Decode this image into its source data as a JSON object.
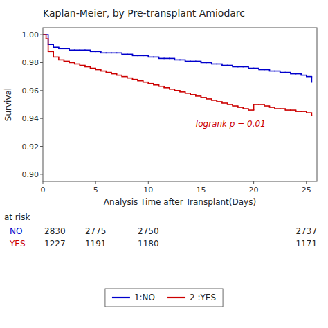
{
  "chart_data": {
    "type": "step",
    "title": "Kaplan-Meier, by Pre-transplant Amiodarc",
    "x_label": "Analysis Time after Transplant(Days)",
    "y_label": "Survival",
    "xlim": [
      0,
      26
    ],
    "ylim": [
      0.895,
      1.005
    ],
    "xticks": [
      0,
      5,
      10,
      15,
      20,
      25
    ],
    "yticks": [
      {
        "value": 0.9,
        "label": "0.90"
      },
      0.92,
      0.94,
      0.96,
      0.98,
      {
        "value": 1.0,
        "label": "1.00"
      }
    ],
    "grid": false,
    "x": [
      0,
      0.3,
      0.5,
      1.0,
      1.5,
      2.0,
      2.5,
      3.0,
      3.5,
      4.0,
      4.5,
      5.0,
      5.5,
      6.0,
      6.5,
      7.0,
      7.5,
      8.0,
      8.5,
      9.0,
      9.5,
      10.0,
      10.5,
      11.0,
      11.5,
      12.0,
      12.5,
      13.0,
      13.5,
      14.0,
      14.5,
      15.0,
      15.5,
      16.0,
      16.5,
      17.0,
      17.5,
      18.0,
      18.5,
      19.0,
      19.5,
      20.0,
      20.5,
      21.0,
      21.5,
      22.0,
      22.5,
      23.0,
      23.5,
      24.0,
      24.5,
      25.0,
      25.5
    ],
    "series": [
      {
        "name": "1:NO",
        "color": "#0000cc",
        "values": [
          1.0,
          1.0,
          0.993,
          0.991,
          0.99,
          0.99,
          0.989,
          0.989,
          0.989,
          0.989,
          0.988,
          0.988,
          0.987,
          0.987,
          0.987,
          0.987,
          0.986,
          0.986,
          0.985,
          0.985,
          0.985,
          0.984,
          0.984,
          0.983,
          0.983,
          0.983,
          0.982,
          0.982,
          0.981,
          0.981,
          0.981,
          0.98,
          0.98,
          0.979,
          0.979,
          0.978,
          0.978,
          0.977,
          0.977,
          0.977,
          0.976,
          0.976,
          0.975,
          0.975,
          0.974,
          0.974,
          0.973,
          0.973,
          0.972,
          0.972,
          0.971,
          0.97,
          0.966
        ]
      },
      {
        "name": "2 :YES",
        "color": "#cc0000",
        "values": [
          1.0,
          0.997,
          0.988,
          0.984,
          0.982,
          0.981,
          0.98,
          0.979,
          0.978,
          0.977,
          0.976,
          0.975,
          0.974,
          0.973,
          0.972,
          0.971,
          0.97,
          0.969,
          0.968,
          0.967,
          0.966,
          0.965,
          0.964,
          0.963,
          0.962,
          0.961,
          0.96,
          0.959,
          0.958,
          0.957,
          0.956,
          0.955,
          0.954,
          0.953,
          0.952,
          0.951,
          0.95,
          0.949,
          0.948,
          0.947,
          0.946,
          0.95,
          0.95,
          0.949,
          0.948,
          0.947,
          0.947,
          0.946,
          0.946,
          0.945,
          0.945,
          0.944,
          0.942
        ]
      }
    ],
    "annotations": [
      {
        "text": "logrank p = 0.01",
        "x": 14.5,
        "y": 0.934,
        "color": "#cc0000"
      }
    ],
    "at_risk": {
      "label": "at risk",
      "x": [
        0,
        5,
        10,
        25
      ],
      "rows": [
        {
          "label": "NO",
          "values": [
            2830,
            2775,
            2750,
            2737
          ]
        },
        {
          "label": "YES",
          "values": [
            1227,
            1191,
            1180,
            1171
          ]
        }
      ]
    }
  }
}
